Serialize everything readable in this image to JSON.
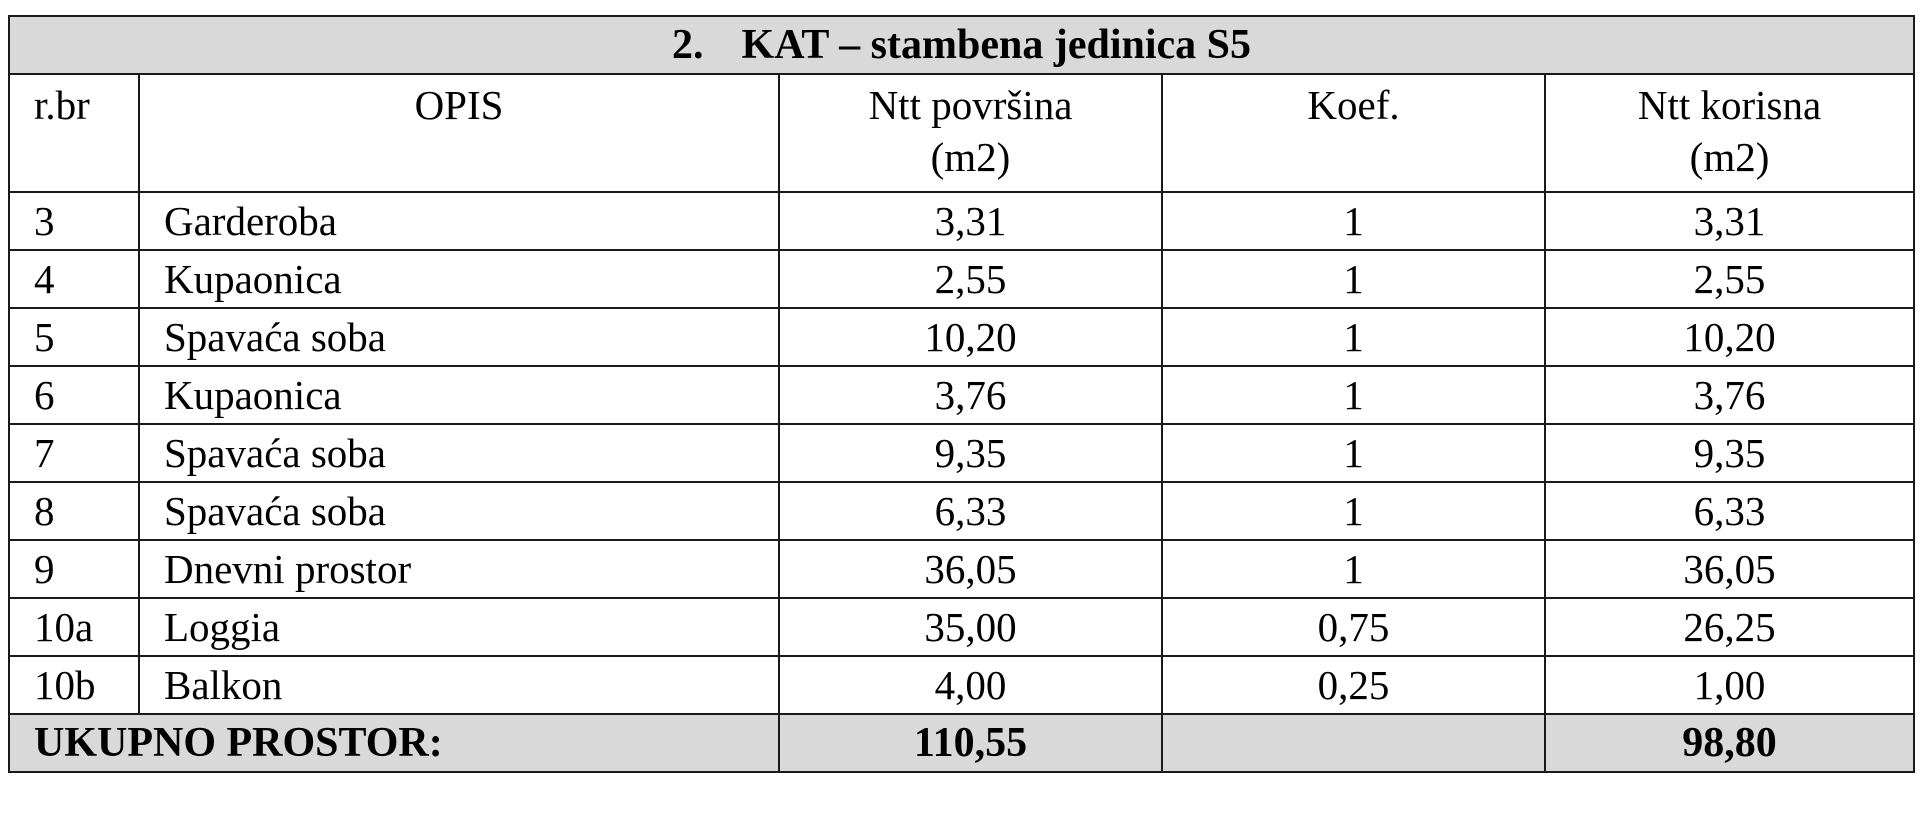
{
  "title": {
    "number": "2.",
    "text": "KAT – stambena jedinica S5"
  },
  "columns": {
    "rbr": "r.br",
    "opis": "OPIS",
    "ntt_povrsina": [
      "Ntt površina",
      "(m2)"
    ],
    "koef": "Koef.",
    "ntt_korisna": [
      "Ntt korisna",
      "(m2)"
    ]
  },
  "rows": [
    {
      "rbr": "3",
      "opis": "Garderoba",
      "povrsina": "3,31",
      "koef": "1",
      "korisna": "3,31"
    },
    {
      "rbr": "4",
      "opis": "Kupaonica",
      "povrsina": "2,55",
      "koef": "1",
      "korisna": "2,55"
    },
    {
      "rbr": "5",
      "opis": "Spavaća soba",
      "povrsina": "10,20",
      "koef": "1",
      "korisna": "10,20"
    },
    {
      "rbr": "6",
      "opis": "Kupaonica",
      "povrsina": "3,76",
      "koef": "1",
      "korisna": "3,76"
    },
    {
      "rbr": "7",
      "opis": "Spavaća soba",
      "povrsina": "9,35",
      "koef": "1",
      "korisna": "9,35"
    },
    {
      "rbr": "8",
      "opis": "Spavaća soba",
      "povrsina": "6,33",
      "koef": "1",
      "korisna": "6,33"
    },
    {
      "rbr": "9",
      "opis": "Dnevni prostor",
      "povrsina": "36,05",
      "koef": "1",
      "korisna": "36,05"
    },
    {
      "rbr": "10a",
      "opis": "Loggia",
      "povrsina": "35,00",
      "koef": "0,75",
      "korisna": "26,25"
    },
    {
      "rbr": "10b",
      "opis": "Balkon",
      "povrsina": "4,00",
      "koef": "0,25",
      "korisna": "1,00"
    }
  ],
  "total": {
    "label": "UKUPNO PROSTOR:",
    "povrsina": "110,55",
    "korisna": "98,80"
  },
  "colors": {
    "header_fill": "#d9d9d9",
    "border": "#1a1a1a"
  }
}
